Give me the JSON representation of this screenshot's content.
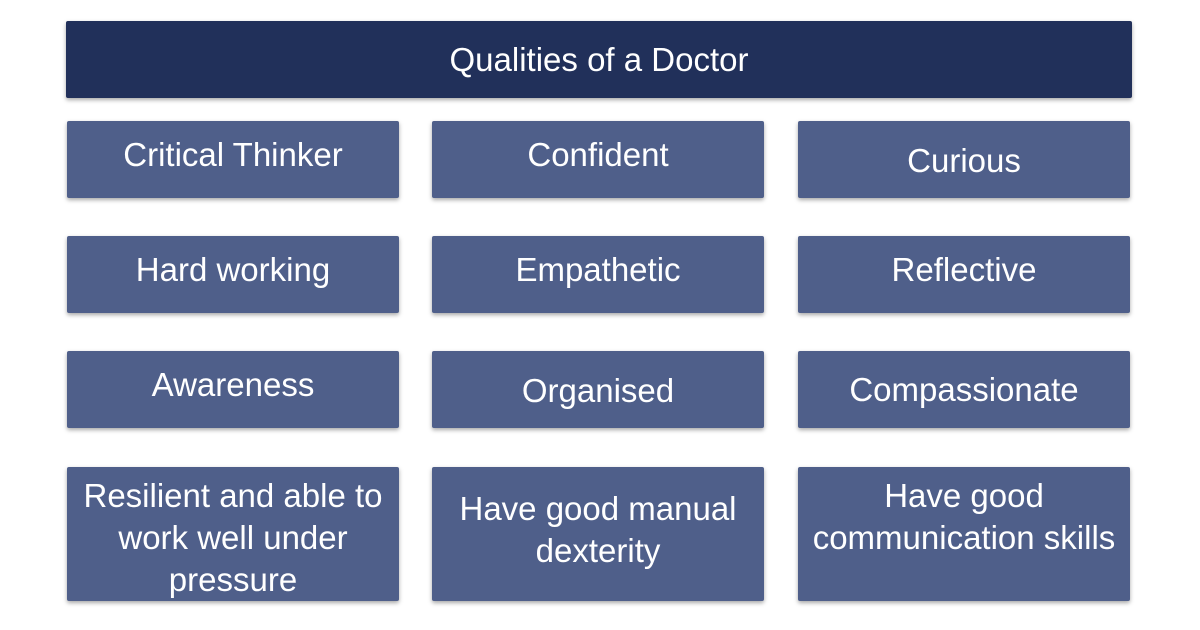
{
  "header": {
    "title": "Qualities of a Doctor"
  },
  "qualities": [
    "Critical Thinker",
    "Confident",
    "Curious",
    "Hard working",
    "Empathetic",
    "Reflective",
    "Awareness",
    "Organised",
    "Compassionate",
    "Resilient and able to work well under pressure",
    "Have good manual dexterity",
    "Have good communication skills"
  ],
  "colors": {
    "header_bg": "#21305a",
    "card_bg": "#4f5f8a",
    "text": "#ffffff"
  }
}
